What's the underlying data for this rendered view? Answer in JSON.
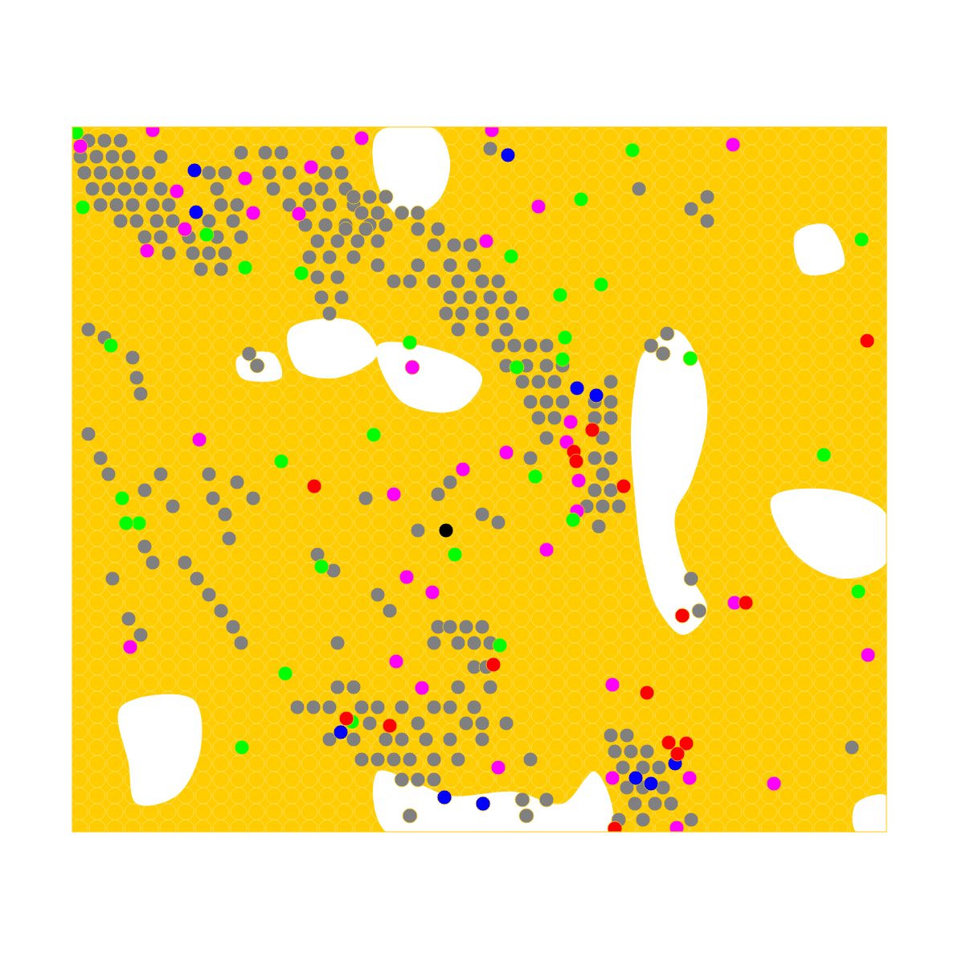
{
  "chart_data": {
    "type": "scatter",
    "color": "#ffcc00",
    "tick_labels": false,
    "xlim": [
      90,
      1103
    ],
    "ylim": [
      158,
      1035
    ],
    "series": [
      {
        "type": "area",
        "color": "#ffffff",
        "polygons": [
          [
            [
              800,
              440
            ],
            [
              840,
              410
            ],
            [
              870,
              450
            ],
            [
              880,
              520
            ],
            [
              860,
              600
            ],
            [
              840,
              640
            ],
            [
              850,
              700
            ],
            [
              880,
              760
            ],
            [
              850,
              790
            ],
            [
              820,
              760
            ],
            [
              800,
              700
            ],
            [
              790,
              620
            ],
            [
              785,
              540
            ],
            [
              790,
              480
            ]
          ],
          [
            [
              150,
              880
            ],
            [
              240,
              870
            ],
            [
              250,
              930
            ],
            [
              220,
              990
            ],
            [
              170,
              1000
            ],
            [
              160,
              950
            ]
          ],
          [
            [
              470,
              960
            ],
            [
              520,
              975
            ],
            [
              560,
              990
            ],
            [
              640,
              985
            ],
            [
              700,
              1000
            ],
            [
              740,
              960
            ],
            [
              760,
              1035
            ],
            [
              480,
              1035
            ]
          ],
          [
            [
              470,
              165
            ],
            [
              540,
              160
            ],
            [
              560,
              200
            ],
            [
              545,
              250
            ],
            [
              500,
              270
            ],
            [
              470,
              230
            ]
          ],
          [
            [
              960,
              620
            ],
            [
              1040,
              610
            ],
            [
              1103,
              640
            ],
            [
              1103,
              700
            ],
            [
              1050,
              720
            ],
            [
              990,
              690
            ]
          ],
          [
            [
              295,
              445
            ],
            [
              340,
              440
            ],
            [
              350,
              470
            ],
            [
              300,
              470
            ]
          ],
          [
            [
              990,
              290
            ],
            [
              1030,
              280
            ],
            [
              1050,
              330
            ],
            [
              1000,
              340
            ]
          ],
          [
            [
              470,
              430
            ],
            [
              560,
              440
            ],
            [
              600,
              470
            ],
            [
              570,
              510
            ],
            [
              500,
              500
            ]
          ],
          [
            [
              360,
              410
            ],
            [
              440,
              400
            ],
            [
              470,
              440
            ],
            [
              420,
              470
            ],
            [
              370,
              460
            ]
          ],
          [
            [
              1065,
              1000
            ],
            [
              1103,
              990
            ],
            [
              1103,
              1035
            ],
            [
              1065,
              1035
            ]
          ]
        ]
      },
      {
        "color": "#808080",
        "marker": "circle",
        "x": [
          110,
          130,
          150,
          100,
          120,
          140,
          160,
          200,
          105,
          125,
          145,
          165,
          185,
          260,
          280,
          115,
          135,
          155,
          175,
          200,
          270,
          125,
          145,
          165,
          190,
          210,
          275,
          295,
          150,
          170,
          195,
          215,
          260,
          290,
          180,
          200,
          235,
          270,
          300,
          210,
          240,
          260,
          280,
          250,
          275,
          300,
          330,
          350,
          335,
          360,
          405,
          425,
          340,
          380,
          400,
          430,
          360,
          385,
          410,
          440,
          380,
          405,
          430,
          460,
          480,
          395,
          420,
          445,
          470,
          385,
          410,
          440,
          395,
          420,
          400,
          425,
          410,
          440,
          460,
          480,
          450,
          470,
          500,
          520,
          430,
          455,
          520,
          545,
          540,
          565,
          585,
          470,
          520,
          560,
          590,
          490,
          510,
          540,
          570,
          600,
          620,
          560,
          585,
          610,
          635,
          555,
          575,
          600,
          625,
          650,
          570,
          600,
          630,
          420,
          610,
          880,
          860,
          880,
          795,
          620,
          640,
          660,
          680,
          630,
          655,
          680,
          700,
          650,
          670,
          690,
          760,
          660,
          680,
          700,
          740,
          760,
          670,
          690,
          740,
          760,
          680,
          750,
          660,
          740,
          760,
          750,
          740,
          760,
          730,
          750,
          770,
          745,
          810,
          830,
          825,
          110,
          130,
          165,
          170,
          175,
          110,
          125,
          135,
          200,
          260,
          265,
          280,
          295,
          315,
          230,
          245,
          260,
          275,
          290,
          300,
          180,
          190,
          140,
          160,
          175,
          285,
          180,
          215,
          395,
          415,
          470,
          485,
          455,
          520,
          545,
          560,
          600,
          620,
          320,
          310,
          545,
          560,
          580,
          600,
          420,
          540,
          570,
          590,
          610,
          590,
          605,
          420,
          440,
          570,
          610,
          370,
          390,
          410,
          450,
          470,
          500,
          540,
          560,
          590,
          460,
          520,
          580,
          600,
          630,
          410,
          440,
          480,
          500,
          530,
          560,
          600,
          450,
          470,
          490,
          510,
          540,
          570,
          660,
          500,
          520,
          540,
          650,
          680,
          510,
          655,
          760,
          780,
          765,
          785,
          805,
          775,
          800,
          820,
          780,
          800,
          825,
          790,
          815,
          835,
          770,
          800,
          860,
          860,
          870,
          1060
        ],
        "values": [
          175,
          175,
          175,
          195,
          195,
          195,
          195,
          195,
          215,
          215,
          215,
          215,
          215,
          215,
          215,
          235,
          235,
          235,
          235,
          235,
          235,
          255,
          255,
          255,
          255,
          255,
          255,
          255,
          275,
          275,
          275,
          275,
          275,
          275,
          295,
          295,
          295,
          295,
          295,
          315,
          315,
          315,
          315,
          335,
          335,
          190,
          190,
          190,
          215,
          215,
          215,
          215,
          235,
          235,
          235,
          235,
          255,
          255,
          255,
          255,
          280,
          280,
          280,
          280,
          280,
          300,
          300,
          300,
          300,
          320,
          320,
          320,
          345,
          345,
          370,
          370,
          390,
          245,
          245,
          245,
          265,
          265,
          265,
          265,
          285,
          285,
          285,
          285,
          305,
          305,
          305,
          330,
          330,
          330,
          330,
          350,
          350,
          350,
          350,
          350,
          350,
          370,
          370,
          370,
          370,
          390,
          390,
          390,
          390,
          390,
          410,
          410,
          410,
          190,
          185,
          245,
          260,
          275,
          235,
          430,
          430,
          430,
          430,
          455,
          455,
          455,
          455,
          475,
          475,
          475,
          475,
          500,
          500,
          500,
          500,
          500,
          520,
          520,
          520,
          520,
          545,
          545,
          570,
          570,
          570,
          590,
          610,
          610,
          630,
          630,
          630,
          655,
          430,
          415,
          440,
          410,
          420,
          445,
          470,
          490,
          540,
          570,
          590,
          590,
          590,
          620,
          640,
          600,
          620,
          700,
          720,
          740,
          760,
          780,
          800,
          680,
          700,
          720,
          770,
          790,
          670,
          610,
          630,
          690,
          710,
          740,
          760,
          620,
          660,
          615,
          600,
          640,
          650,
          455,
          440,
          780,
          780,
          780,
          780,
          800,
          800,
          800,
          800,
          800,
          830,
          830,
          855,
          855,
          855,
          855,
          880,
          880,
          880,
          880,
          880,
          880,
          880,
          880,
          880,
          900,
          900,
          900,
          900,
          900,
          920,
          920,
          920,
          920,
          920,
          920,
          920,
          945,
          945,
          945,
          945,
          945,
          945,
          945,
          970,
          970,
          970,
          995,
          995,
          1015,
          1015,
          915,
          915,
          935,
          935,
          935,
          955,
          955,
          955,
          980,
          980,
          980,
          1000,
          1000,
          1000,
          1020,
          1020,
          1020,
          720,
          760,
          930
        ]
      },
      {
        "color": "#ff00ff",
        "marker": "circle",
        "x": [
          100,
          190,
          450,
          612,
          912,
          305,
          387,
          220,
          315,
          372,
          230,
          183,
          605,
          670,
          513,
          710,
          248,
          576,
          490,
          720,
          718,
          680,
          506,
          538,
          162,
          493,
          525,
          762,
          914,
          1080,
          620,
          762,
          858,
          963,
          842,
          705,
          630
        ],
        "values": [
          182,
          162,
          172,
          162,
          180,
          222,
          208,
          238,
          265,
          266,
          285,
          312,
          300,
          257,
          457,
          525,
          547,
          584,
          615,
          598,
          636,
          684,
          718,
          737,
          805,
          823,
          856,
          852,
          750,
          815,
          955,
          968,
          968,
          975,
          1030,
          550,
          563
        ]
      },
      {
        "color": "#00ff00",
        "marker": "circle",
        "x": [
          95,
          103,
          257,
          305,
          375,
          138,
          173,
          157,
          152,
          350,
          465,
          510,
          643,
          700,
          703,
          697,
          748,
          636,
          723,
          787,
          859,
          1025,
          1072,
          666,
          713,
          566,
          400,
          622,
          355,
          301,
          438,
          1068
        ],
        "values": [
          165,
          258,
          292,
          333,
          340,
          430,
          651,
          651,
          620,
          574,
          541,
          426,
          457,
          447,
          420,
          367,
          354,
          319,
          248,
          187,
          446,
          566,
          298,
          593,
          647,
          690,
          705,
          803,
          838,
          930,
          898,
          736
        ]
      },
      {
        "color": "#0000ff",
        "marker": "circle",
        "x": [
          242,
          244,
          632,
          718,
          742,
          424,
          601,
          791,
          810,
          840,
          553
        ],
        "values": [
          212,
          264,
          193,
          483,
          492,
          911,
          1000,
          968,
          975,
          950,
          992
        ]
      },
      {
        "color": "#ff0000",
        "marker": "circle",
        "x": [
          1079,
          737,
          714,
          717,
          776,
          391,
          849,
          928,
          614,
          431,
          485,
          805,
          832,
          854,
          843,
          765
        ],
        "values": [
          424,
          535,
          562,
          574,
          605,
          605,
          766,
          750,
          827,
          894,
          903,
          862,
          924,
          925,
          938,
          1031
        ]
      },
      {
        "color": "#000000",
        "marker": "circle",
        "x": [
          555
        ],
        "values": [
          660
        ]
      }
    ]
  }
}
